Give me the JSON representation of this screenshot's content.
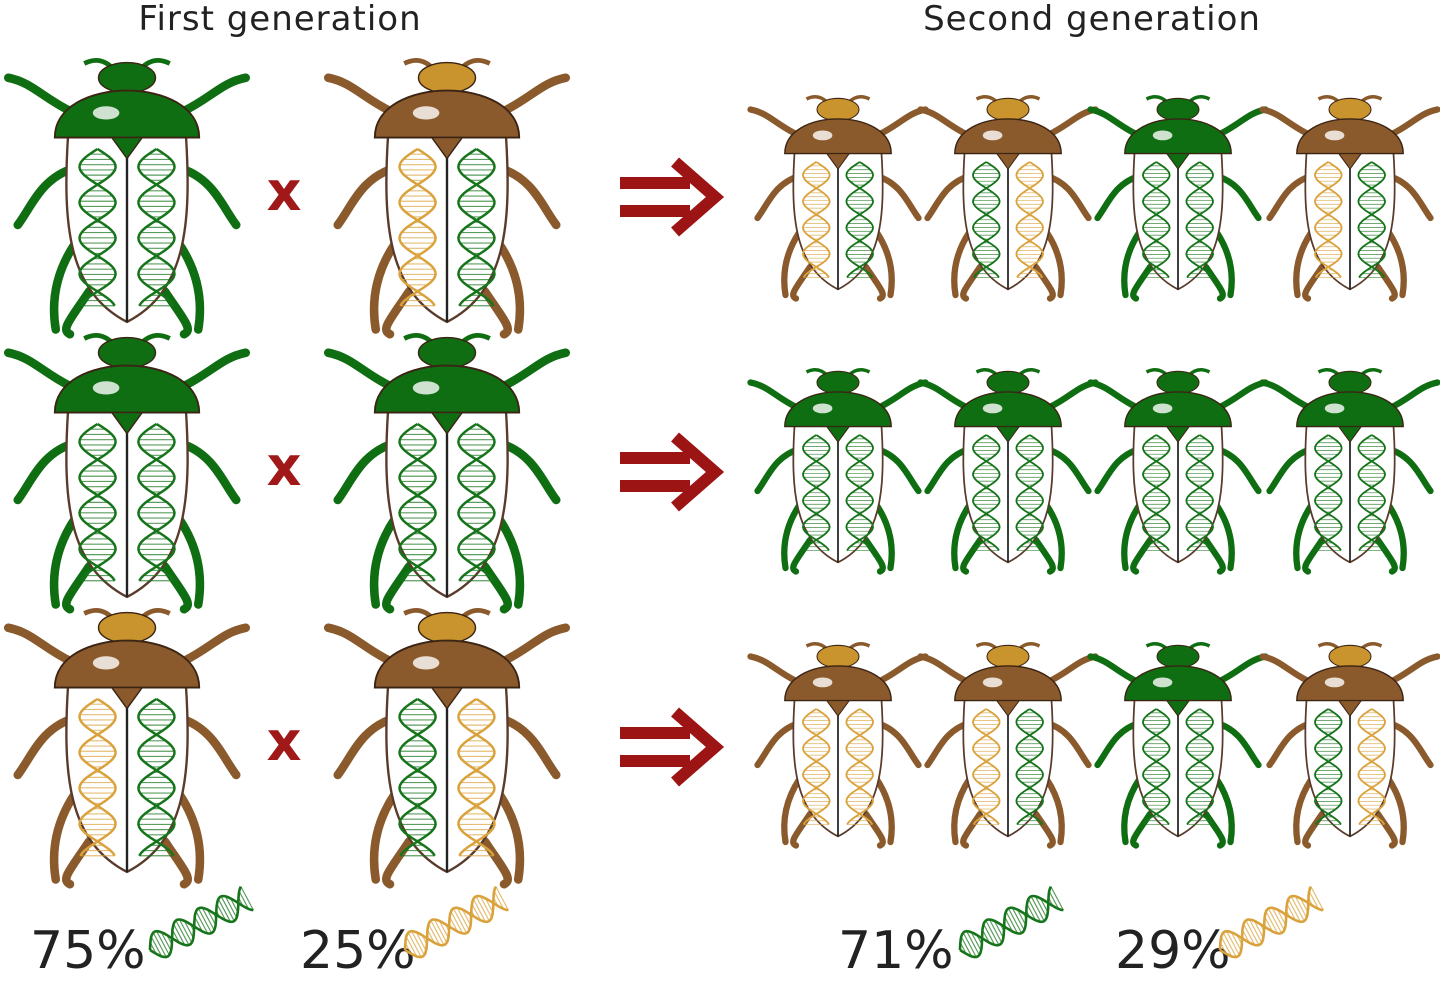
{
  "titles": {
    "first": "First generation",
    "second": "Second generation"
  },
  "crosses": [
    "x",
    "x",
    "x"
  ],
  "percentages": {
    "first": [
      "75%",
      "25%"
    ],
    "second": [
      "71%",
      "29%"
    ]
  }
}
